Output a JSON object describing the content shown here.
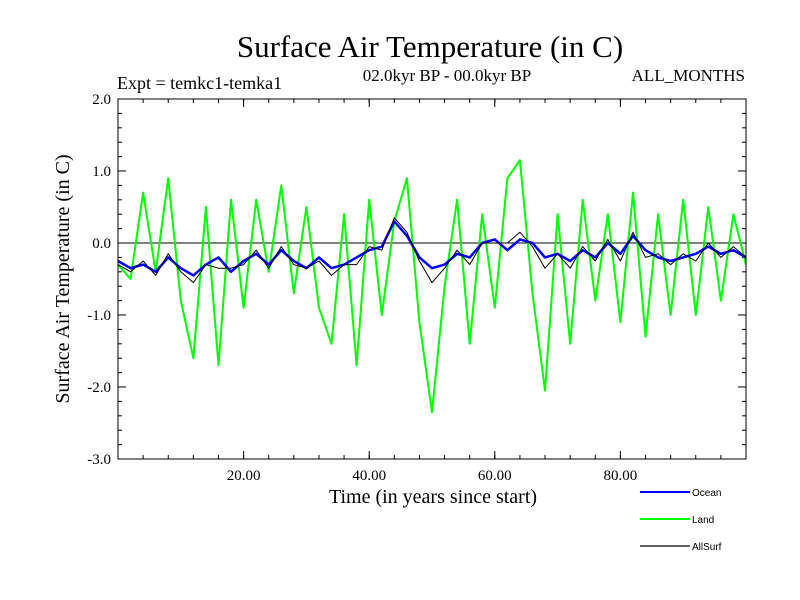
{
  "chart_data": {
    "type": "line",
    "title": "Surface Air Temperature (in C)",
    "subtitle_left": "Expt = temkc1-temka1",
    "subtitle_center": "02.0kyr BP - 00.0kyr BP",
    "subtitle_right": "ALL_MONTHS",
    "xlabel": "Time (in years since start)",
    "ylabel": "Surface Air Temperature (in C)",
    "xlim": [
      0,
      100
    ],
    "ylim": [
      -3.0,
      2.0
    ],
    "xticks": [
      20,
      40,
      60,
      80
    ],
    "xtick_labels": [
      "20.00",
      "40.00",
      "60.00",
      "80.00"
    ],
    "yticks": [
      2.0,
      1.0,
      0.0,
      -1.0,
      -2.0,
      -3.0
    ],
    "ytick_labels": [
      "2.0",
      "1.0",
      "0.0",
      "-1.0",
      "-2.0",
      "-3.0"
    ],
    "reference_line": 0.0,
    "legend_position": "bottom-right",
    "series": [
      {
        "name": "Land",
        "color": "#00ff00",
        "x": [
          0,
          2,
          4,
          6,
          8,
          10,
          12,
          14,
          16,
          18,
          20,
          22,
          24,
          26,
          28,
          30,
          32,
          34,
          36,
          38,
          40,
          42,
          44,
          46,
          48,
          50,
          52,
          54,
          56,
          58,
          60,
          62,
          64,
          66,
          68,
          70,
          72,
          74,
          76,
          78,
          80,
          82,
          84,
          86,
          88,
          90,
          92,
          94,
          96,
          98,
          100
        ],
        "values": [
          -0.3,
          -0.5,
          0.7,
          -0.4,
          0.9,
          -0.8,
          -1.6,
          0.5,
          -1.7,
          0.6,
          -0.9,
          0.6,
          -0.4,
          0.8,
          -0.7,
          0.5,
          -0.9,
          -1.4,
          0.4,
          -1.7,
          0.6,
          -1.0,
          0.3,
          0.9,
          -1.1,
          -2.35,
          -0.6,
          0.6,
          -1.4,
          0.4,
          -0.9,
          0.9,
          1.15,
          -0.7,
          -2.05,
          0.4,
          -1.4,
          0.6,
          -0.8,
          0.4,
          -1.1,
          0.7,
          -1.3,
          0.4,
          -1.0,
          0.6,
          -1.0,
          0.5,
          -0.8,
          0.4,
          -0.3
        ]
      },
      {
        "name": "Ocean",
        "color": "#0000ff",
        "x": [
          0,
          2,
          4,
          6,
          8,
          10,
          12,
          14,
          16,
          18,
          20,
          22,
          24,
          26,
          28,
          30,
          32,
          34,
          36,
          38,
          40,
          42,
          44,
          46,
          48,
          50,
          52,
          54,
          56,
          58,
          60,
          62,
          64,
          66,
          68,
          70,
          72,
          74,
          76,
          78,
          80,
          82,
          84,
          86,
          88,
          90,
          92,
          94,
          96,
          98,
          100
        ],
        "values": [
          -0.25,
          -0.35,
          -0.3,
          -0.4,
          -0.2,
          -0.35,
          -0.45,
          -0.3,
          -0.2,
          -0.4,
          -0.25,
          -0.15,
          -0.3,
          -0.1,
          -0.25,
          -0.35,
          -0.2,
          -0.35,
          -0.3,
          -0.2,
          -0.1,
          -0.05,
          0.3,
          0.1,
          -0.2,
          -0.35,
          -0.3,
          -0.15,
          -0.2,
          0.0,
          0.05,
          -0.1,
          0.05,
          0.0,
          -0.2,
          -0.15,
          -0.25,
          -0.1,
          -0.2,
          0.0,
          -0.15,
          0.1,
          -0.1,
          -0.2,
          -0.25,
          -0.2,
          -0.15,
          -0.05,
          -0.15,
          -0.1,
          -0.2
        ]
      },
      {
        "name": "AllSurf",
        "color": "#000000",
        "x": [
          0,
          2,
          4,
          6,
          8,
          10,
          12,
          14,
          16,
          18,
          20,
          22,
          24,
          26,
          28,
          30,
          32,
          34,
          36,
          38,
          40,
          42,
          44,
          46,
          48,
          50,
          52,
          54,
          56,
          58,
          60,
          62,
          64,
          66,
          68,
          70,
          72,
          74,
          76,
          78,
          80,
          82,
          84,
          86,
          88,
          90,
          92,
          94,
          96,
          98,
          100
        ],
        "values": [
          -0.3,
          -0.4,
          -0.25,
          -0.45,
          -0.15,
          -0.4,
          -0.55,
          -0.3,
          -0.35,
          -0.35,
          -0.3,
          -0.1,
          -0.35,
          -0.05,
          -0.3,
          -0.35,
          -0.25,
          -0.45,
          -0.3,
          -0.3,
          -0.05,
          -0.1,
          0.35,
          0.15,
          -0.25,
          -0.55,
          -0.35,
          -0.1,
          -0.3,
          0.0,
          0.0,
          0.0,
          0.15,
          -0.05,
          -0.35,
          -0.15,
          -0.35,
          -0.05,
          -0.25,
          0.05,
          -0.25,
          0.15,
          -0.2,
          -0.15,
          -0.3,
          -0.15,
          -0.25,
          0.0,
          -0.2,
          -0.05,
          -0.2
        ]
      }
    ]
  }
}
